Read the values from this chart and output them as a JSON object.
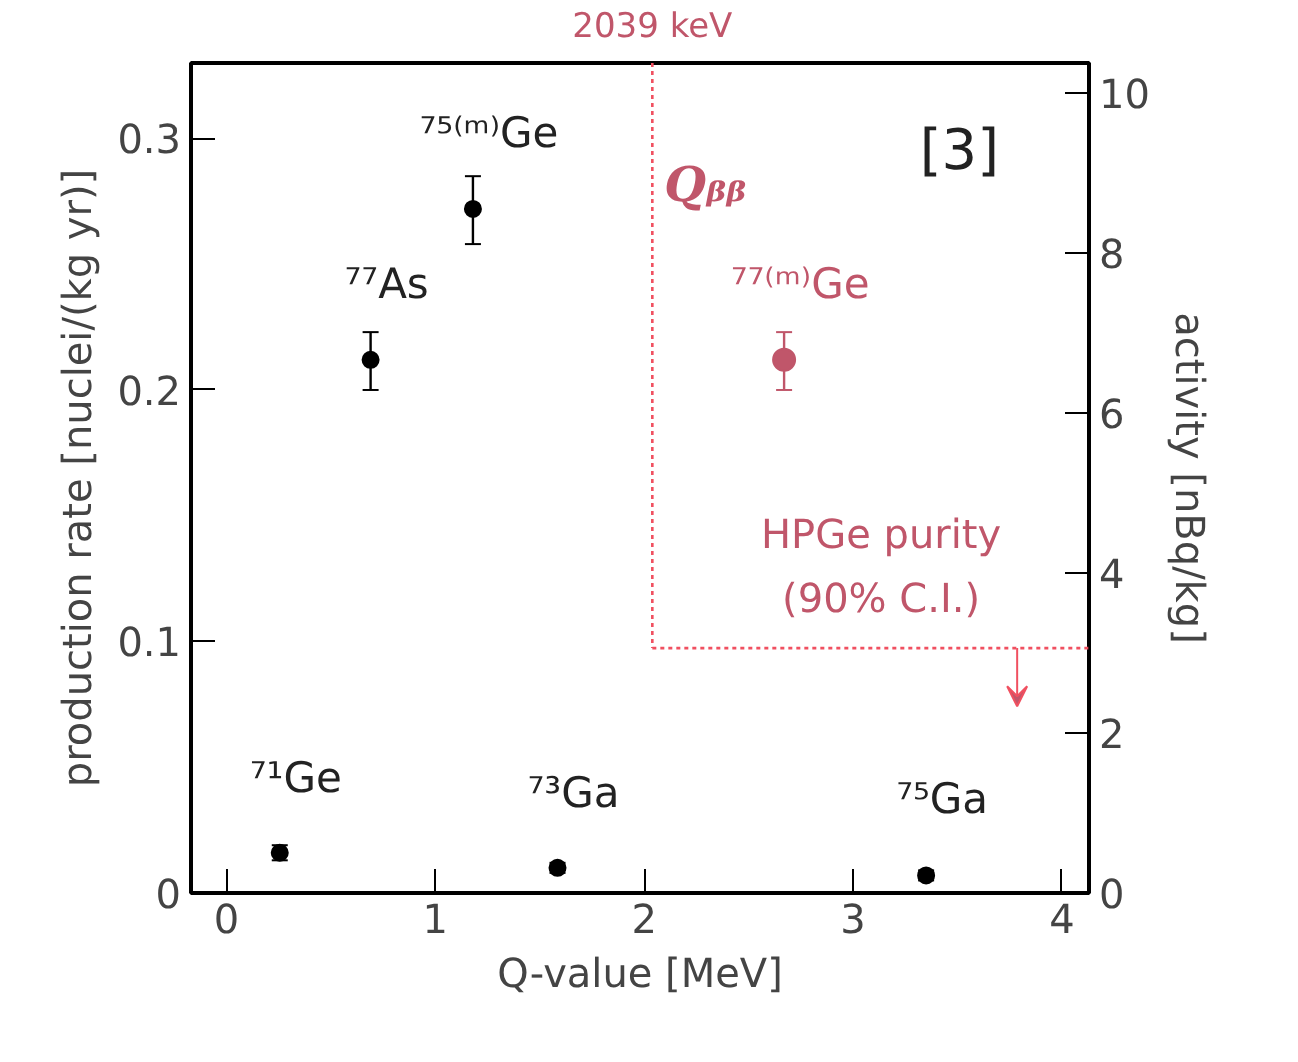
{
  "chart_data": {
    "type": "scatter",
    "xlabel": "Q-value [MeV]",
    "ylabel": "production rate [nuclei/(kg yr)]",
    "y2label": "activity [nBq/kg]",
    "xlim": [
      -0.17,
      4.13
    ],
    "xticks": [
      0,
      1,
      2,
      3,
      4
    ],
    "ylim": [
      0,
      0.33
    ],
    "yticks": [
      0,
      0.1,
      0.2,
      0.3
    ],
    "y2lim": [
      0,
      10.37
    ],
    "y2ticks": [
      0,
      2,
      4,
      6,
      8,
      10
    ],
    "marker": "circle",
    "grid": false,
    "series": [
      {
        "color": "#000000",
        "x": [
          0.255,
          0.69,
          1.18,
          1.585,
          3.35
        ],
        "values": [
          0.016,
          0.212,
          0.272,
          0.01,
          0.007
        ],
        "errors": [
          0.003,
          [
            0.2,
            0.223
          ],
          [
            0.258,
            0.285
          ],
          0.002,
          0.002
        ]
      },
      {
        "color": "#c0566a",
        "x": [
          2.67
        ],
        "values": [
          0.212
        ],
        "errors": [
          [
            0.2,
            0.223
          ]
        ]
      }
    ],
    "ref_lines": [
      {
        "axis": "x",
        "value": 2.039,
        "label": "2039 keV",
        "color": "#f05060",
        "line_style": "dotted"
      },
      {
        "axis": "y2",
        "value": 3.06,
        "label": "HPGe purity\n(90% C.I.)",
        "color": "#f05060",
        "line_style": "dotted"
      }
    ],
    "annotations": [
      {
        "text": "⁷¹Ge",
        "x": 0.255,
        "y": 0.0156
      },
      {
        "text": "⁷⁷As",
        "x": 0.69,
        "y": 0.212
      },
      {
        "text": "⁷⁵⁽ᵐ⁾Ge",
        "x": 1.18,
        "y": 0.272
      },
      {
        "text": "⁷³Ga",
        "x": 1.585,
        "y": 0.0095
      },
      {
        "text": "⁷⁷⁽ᵐ⁾Ge",
        "x": 2.67,
        "y": 0.212
      },
      {
        "text": "⁷⁵Ga",
        "x": 3.35,
        "y": 0.007
      },
      "Qᵦᵦ",
      "[3]"
    ]
  }
}
